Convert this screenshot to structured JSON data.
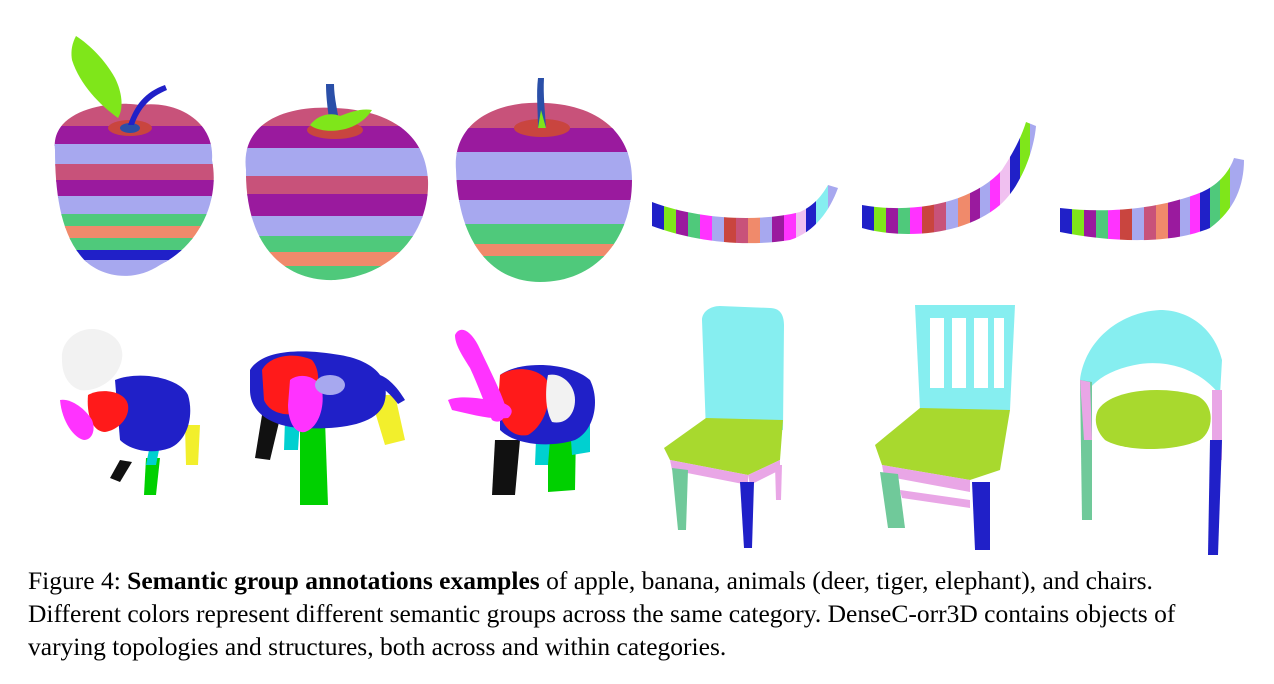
{
  "figure": {
    "rows": [
      {
        "category": "apple",
        "items": [
          "apple-1",
          "apple-2",
          "apple-3"
        ]
      },
      {
        "category": "banana",
        "items": [
          "banana-1",
          "banana-2",
          "banana-3"
        ]
      },
      {
        "category": "animals",
        "items": [
          "deer",
          "tiger",
          "elephant"
        ]
      },
      {
        "category": "chairs",
        "items": [
          "chair-1",
          "chair-2",
          "chair-3"
        ]
      }
    ],
    "colors": {
      "teal": "#c8527a",
      "lilac": "#a7a8ef",
      "purple": "#9a1a9e",
      "green": "#4fc97b",
      "salmon": "#f08a6b",
      "brick": "#c9453f",
      "blue": "#2020c8",
      "red": "#ff1a1a",
      "magenta": "#ff33ff",
      "lime": "#7fe61a",
      "cyan": "#86eef0",
      "seat": "#a8d92e",
      "pink": "#e9a6e6",
      "leg_green": "#70c99a",
      "yellow": "#f2ef2c",
      "white": "#f2f2f2",
      "black": "#111111"
    }
  },
  "caption": {
    "label": "Figure 4: ",
    "title": "Semantic group annotations examples",
    "text": " of apple, banana, animals (deer, tiger, elephant), and chairs. Different colors represent different semantic groups across the same category. DenseC-orr3D contains objects of varying topologies and structures, both across and within categories."
  }
}
